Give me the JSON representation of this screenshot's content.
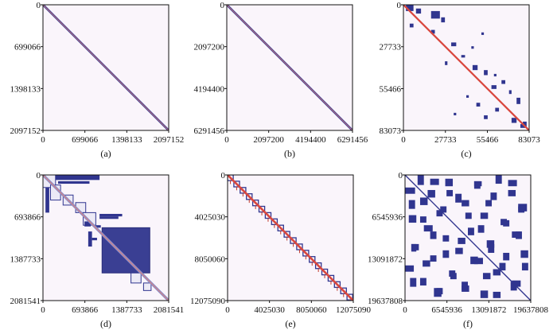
{
  "chart_data": [
    {
      "type": "heatmap",
      "subtype": "sparse-matrix-spy-plot",
      "caption": "(a)",
      "matrix_dimension": 2097152,
      "ticks": [
        0,
        699066,
        1398133,
        2097152
      ],
      "tick_labels_x": [
        "0",
        "699066",
        "1398133",
        "2097152"
      ],
      "tick_labels_y": [
        "0",
        "699066",
        "1398133",
        "2097152"
      ],
      "xlim": [
        0,
        2097152
      ],
      "ylim": [
        0,
        2097152
      ],
      "pattern": "narrow-band-diagonal",
      "bands": [
        {
          "offset": 0,
          "halfwidth": 0.012,
          "color": "#30358f"
        },
        {
          "offset": 0,
          "halfwidth": 0.004,
          "color": "#d98080"
        }
      ],
      "blocks": []
    },
    {
      "type": "heatmap",
      "subtype": "sparse-matrix-spy-plot",
      "caption": "(b)",
      "matrix_dimension": 6291456,
      "ticks": [
        0,
        2097200,
        4194400,
        6291456
      ],
      "tick_labels_x": [
        "0",
        "2097200",
        "4194400",
        "6291456"
      ],
      "tick_labels_y": [
        "0",
        "2097200",
        "4194400",
        "6291456"
      ],
      "xlim": [
        0,
        6291456
      ],
      "ylim": [
        0,
        6291456
      ],
      "pattern": "narrow-band-diagonal",
      "bands": [
        {
          "offset": 0,
          "halfwidth": 0.012,
          "color": "#30358f"
        },
        {
          "offset": 0,
          "halfwidth": 0.004,
          "color": "#d98080"
        }
      ],
      "blocks": []
    },
    {
      "type": "heatmap",
      "subtype": "sparse-matrix-spy-plot",
      "caption": "(c)",
      "matrix_dimension": 83073,
      "ticks": [
        0,
        27733,
        55466,
        83073
      ],
      "tick_labels_x": [
        "0",
        "27733",
        "55466",
        "83073"
      ],
      "tick_labels_y": [
        "0",
        "27733",
        "55466",
        "83073"
      ],
      "xlim": [
        0,
        83073
      ],
      "ylim": [
        0,
        83073
      ],
      "pattern": "diagonal-with-scattered-blocks",
      "bands": [
        {
          "offset": 0,
          "halfwidth": 0.01,
          "color": "#d9483f"
        }
      ],
      "blocks": [
        {
          "r": 0.0,
          "c": 0.02,
          "h": 0.05,
          "w": 0.06
        },
        {
          "r": 0.03,
          "c": 0.1,
          "h": 0.04,
          "w": 0.04
        },
        {
          "r": 0.05,
          "c": 0.22,
          "h": 0.06,
          "w": 0.07
        },
        {
          "r": 0.1,
          "c": 0.3,
          "h": 0.04,
          "w": 0.03
        },
        {
          "r": 0.15,
          "c": 0.05,
          "h": 0.03,
          "w": 0.03
        },
        {
          "r": 0.2,
          "c": 0.22,
          "h": 0.03,
          "w": 0.03
        },
        {
          "r": 0.22,
          "c": 0.62,
          "h": 0.02,
          "w": 0.02
        },
        {
          "r": 0.3,
          "c": 0.38,
          "h": 0.03,
          "w": 0.04
        },
        {
          "r": 0.33,
          "c": 0.54,
          "h": 0.02,
          "w": 0.02
        },
        {
          "r": 0.4,
          "c": 0.46,
          "h": 0.02,
          "w": 0.03
        },
        {
          "r": 0.45,
          "c": 0.33,
          "h": 0.03,
          "w": 0.02
        },
        {
          "r": 0.48,
          "c": 0.55,
          "h": 0.04,
          "w": 0.04
        },
        {
          "r": 0.52,
          "c": 0.64,
          "h": 0.04,
          "w": 0.03
        },
        {
          "r": 0.55,
          "c": 0.72,
          "h": 0.02,
          "w": 0.02
        },
        {
          "r": 0.6,
          "c": 0.78,
          "h": 0.03,
          "w": 0.03
        },
        {
          "r": 0.64,
          "c": 0.7,
          "h": 0.03,
          "w": 0.04
        },
        {
          "r": 0.68,
          "c": 0.84,
          "h": 0.03,
          "w": 0.02
        },
        {
          "r": 0.72,
          "c": 0.5,
          "h": 0.02,
          "w": 0.02
        },
        {
          "r": 0.74,
          "c": 0.9,
          "h": 0.05,
          "w": 0.03
        },
        {
          "r": 0.78,
          "c": 0.58,
          "h": 0.03,
          "w": 0.03
        },
        {
          "r": 0.82,
          "c": 0.73,
          "h": 0.03,
          "w": 0.03
        },
        {
          "r": 0.86,
          "c": 0.4,
          "h": 0.02,
          "w": 0.02
        },
        {
          "r": 0.88,
          "c": 0.64,
          "h": 0.03,
          "w": 0.03
        },
        {
          "r": 0.9,
          "c": 0.86,
          "h": 0.04,
          "w": 0.04
        },
        {
          "r": 0.93,
          "c": 0.95,
          "h": 0.04,
          "w": 0.03
        },
        {
          "r": 0.95,
          "c": 0.93,
          "h": 0.03,
          "w": 0.04
        }
      ]
    },
    {
      "type": "heatmap",
      "subtype": "sparse-matrix-spy-plot",
      "caption": "(d)",
      "matrix_dimension": 2081541,
      "ticks": [
        0,
        693866,
        1387733,
        2081541
      ],
      "tick_labels_x": [
        "0",
        "693866",
        "1387733",
        "2081541"
      ],
      "tick_labels_y": [
        "0",
        "693866",
        "1387733",
        "2081541"
      ],
      "xlim": [
        0,
        2081541
      ],
      "ylim": [
        0,
        2081541
      ],
      "pattern": "block-diagonal-with-dense-block",
      "bands": [
        {
          "offset": 0,
          "halfwidth": 0.005,
          "color": "#d98080"
        },
        {
          "offset": 0,
          "halfwidth": 0.015,
          "color": "#8a8fc9"
        }
      ],
      "blocks": [
        {
          "r": 0.0,
          "c": 0.0,
          "h": 0.1,
          "w": 0.1,
          "style": "outline"
        },
        {
          "r": 0.0,
          "c": 0.1,
          "h": 0.04,
          "w": 0.35
        },
        {
          "r": 0.05,
          "c": 0.12,
          "h": 0.02,
          "w": 0.25
        },
        {
          "r": 0.08,
          "c": 0.06,
          "h": 0.12,
          "w": 0.08,
          "style": "outline"
        },
        {
          "r": 0.1,
          "c": 0.02,
          "h": 0.2,
          "w": 0.03
        },
        {
          "r": 0.16,
          "c": 0.16,
          "h": 0.08,
          "w": 0.08,
          "style": "outline"
        },
        {
          "r": 0.22,
          "c": 0.26,
          "h": 0.08,
          "w": 0.08,
          "style": "outline"
        },
        {
          "r": 0.3,
          "c": 0.32,
          "h": 0.1,
          "w": 0.1,
          "style": "outline"
        },
        {
          "r": 0.31,
          "c": 0.45,
          "h": 0.02,
          "w": 0.18
        },
        {
          "r": 0.33,
          "c": 0.45,
          "h": 0.02,
          "w": 0.15
        },
        {
          "r": 0.37,
          "c": 0.33,
          "h": 0.04,
          "w": 0.05
        },
        {
          "r": 0.4,
          "c": 0.42,
          "h": 0.02,
          "w": 0.04
        },
        {
          "r": 0.42,
          "c": 0.47,
          "h": 0.36,
          "w": 0.38,
          "style": "dense"
        },
        {
          "r": 0.45,
          "c": 0.36,
          "h": 0.12,
          "w": 0.03
        },
        {
          "r": 0.5,
          "c": 0.39,
          "h": 0.02,
          "w": 0.04
        },
        {
          "r": 0.78,
          "c": 0.7,
          "h": 0.08,
          "w": 0.08,
          "style": "outline"
        },
        {
          "r": 0.86,
          "c": 0.8,
          "h": 0.06,
          "w": 0.06,
          "style": "outline"
        }
      ]
    },
    {
      "type": "heatmap",
      "subtype": "sparse-matrix-spy-plot",
      "caption": "(e)",
      "matrix_dimension": 12075090,
      "ticks": [
        0,
        4025030,
        8050060,
        12075090
      ],
      "tick_labels_x": [
        "0",
        "4025030",
        "8050060",
        "12075090"
      ],
      "tick_labels_y": [
        "0",
        "4025030",
        "8050060",
        "12075090"
      ],
      "xlim": [
        0,
        12075090
      ],
      "ylim": [
        0,
        12075090
      ],
      "pattern": "repeated-diagonal-blocks",
      "bands": [
        {
          "offset": 0,
          "halfwidth": 0.012,
          "color": "#d9483f"
        }
      ],
      "diag_blocks": {
        "count": 20,
        "size": 0.045,
        "color": "#30358f"
      },
      "blocks": []
    },
    {
      "type": "heatmap",
      "subtype": "sparse-matrix-spy-plot",
      "caption": "(f)",
      "matrix_dimension": 19637808,
      "ticks": [
        0,
        6545936,
        13091872,
        19637808
      ],
      "tick_labels_x": [
        "0",
        "6545936",
        "13091872",
        "19637808"
      ],
      "tick_labels_y": [
        "0",
        "6545936",
        "13091872",
        "19637808"
      ],
      "xlim": [
        0,
        19637808
      ],
      "ylim": [
        0,
        19637808
      ],
      "pattern": "symmetric-random-block-sparse",
      "bands": [
        {
          "offset": 0,
          "halfwidth": 0.006,
          "color": "#30358f"
        }
      ],
      "blocks": [
        {
          "r": 0.03,
          "c": 0.2,
          "h": 0.05,
          "w": 0.07
        },
        {
          "r": 0.05,
          "c": 0.55,
          "h": 0.04,
          "w": 0.06
        },
        {
          "r": 0.04,
          "c": 0.82,
          "h": 0.05,
          "w": 0.07
        },
        {
          "r": 0.1,
          "c": 0.0,
          "h": 0.05,
          "w": 0.08
        },
        {
          "r": 0.12,
          "c": 0.33,
          "h": 0.05,
          "w": 0.05
        },
        {
          "r": 0.14,
          "c": 0.68,
          "h": 0.06,
          "w": 0.05
        },
        {
          "r": 0.18,
          "c": 0.12,
          "h": 0.06,
          "w": 0.06
        },
        {
          "r": 0.2,
          "c": 0.45,
          "h": 0.05,
          "w": 0.06
        },
        {
          "r": 0.23,
          "c": 0.9,
          "h": 0.06,
          "w": 0.07
        },
        {
          "r": 0.28,
          "c": 0.25,
          "h": 0.05,
          "w": 0.05
        },
        {
          "r": 0.3,
          "c": 0.6,
          "h": 0.05,
          "w": 0.06
        },
        {
          "r": 0.32,
          "c": 0.03,
          "h": 0.06,
          "w": 0.06
        },
        {
          "r": 0.36,
          "c": 0.78,
          "h": 0.05,
          "w": 0.05
        },
        {
          "r": 0.4,
          "c": 0.15,
          "h": 0.05,
          "w": 0.07
        },
        {
          "r": 0.42,
          "c": 0.5,
          "h": 0.06,
          "w": 0.05
        },
        {
          "r": 0.45,
          "c": 0.85,
          "h": 0.05,
          "w": 0.07
        },
        {
          "r": 0.48,
          "c": 0.3,
          "h": 0.05,
          "w": 0.05
        },
        {
          "r": 0.52,
          "c": 0.65,
          "h": 0.06,
          "w": 0.06
        },
        {
          "r": 0.55,
          "c": 0.05,
          "h": 0.05,
          "w": 0.06
        },
        {
          "r": 0.58,
          "c": 0.4,
          "h": 0.05,
          "w": 0.06
        },
        {
          "r": 0.6,
          "c": 0.92,
          "h": 0.06,
          "w": 0.06
        },
        {
          "r": 0.64,
          "c": 0.2,
          "h": 0.05,
          "w": 0.05
        },
        {
          "r": 0.66,
          "c": 0.55,
          "h": 0.05,
          "w": 0.07
        },
        {
          "r": 0.7,
          "c": 0.75,
          "h": 0.06,
          "w": 0.05
        },
        {
          "r": 0.72,
          "c": 0.0,
          "h": 0.05,
          "w": 0.07
        },
        {
          "r": 0.76,
          "c": 0.35,
          "h": 0.05,
          "w": 0.05
        },
        {
          "r": 0.78,
          "c": 0.62,
          "h": 0.05,
          "w": 0.06
        },
        {
          "r": 0.82,
          "c": 0.12,
          "h": 0.06,
          "w": 0.05
        },
        {
          "r": 0.84,
          "c": 0.85,
          "h": 0.05,
          "w": 0.07
        },
        {
          "r": 0.88,
          "c": 0.45,
          "h": 0.05,
          "w": 0.06
        },
        {
          "r": 0.9,
          "c": 0.25,
          "h": 0.05,
          "w": 0.05
        },
        {
          "r": 0.93,
          "c": 0.7,
          "h": 0.05,
          "w": 0.06
        }
      ],
      "symmetric": true
    }
  ]
}
